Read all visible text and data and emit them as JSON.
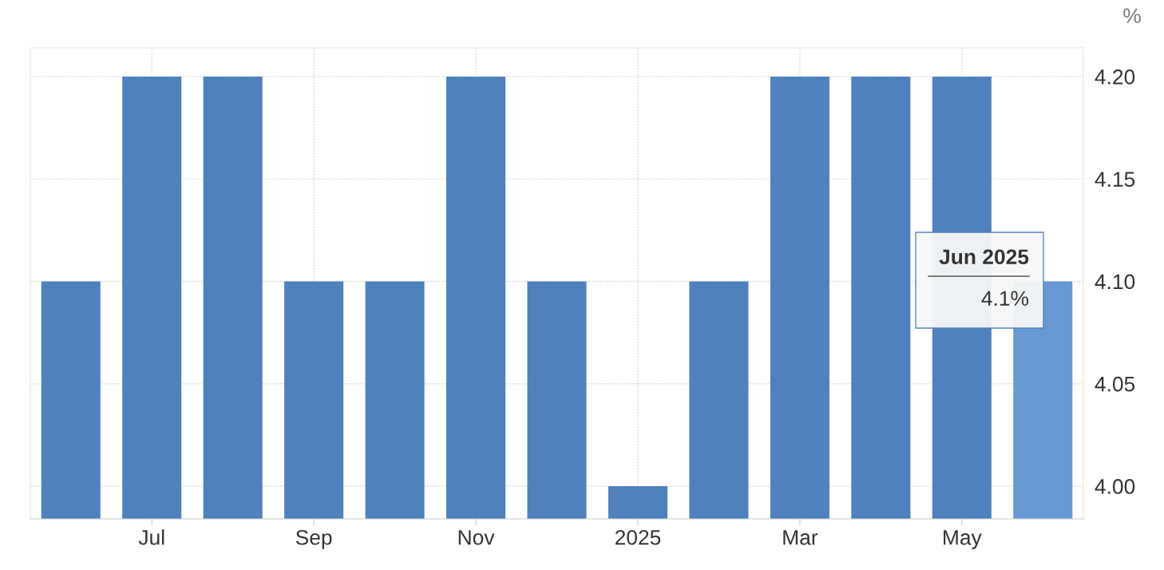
{
  "chart_data": {
    "type": "bar",
    "categories": [
      null,
      "Jul",
      null,
      "Sep",
      null,
      "Nov",
      null,
      "2025",
      null,
      "Mar",
      null,
      "May",
      null
    ],
    "values": [
      4.1,
      4.2,
      4.2,
      4.1,
      4.1,
      4.2,
      4.1,
      4.0,
      4.1,
      4.2,
      4.2,
      4.2,
      4.1
    ],
    "colors": [
      "#4e81bd",
      "#4e81bd",
      "#4e81bd",
      "#4e81bd",
      "#4e81bd",
      "#4e81bd",
      "#4e81bd",
      "#4e81bd",
      "#4e81bd",
      "#4e81bd",
      "#4e81bd",
      "#4e81bd",
      "#6699d4"
    ],
    "ylabel": "%",
    "ylim": [
      3.984,
      4.214
    ],
    "yticks": [
      {
        "value": 4.0,
        "label": "4.00"
      },
      {
        "value": 4.05,
        "label": "4.05"
      },
      {
        "value": 4.1,
        "label": "4.10"
      },
      {
        "value": 4.15,
        "label": "4.15"
      },
      {
        "value": 4.2,
        "label": "4.20"
      }
    ],
    "grid": true,
    "annotations": [
      "Jun 2025",
      "4.1%"
    ]
  }
}
